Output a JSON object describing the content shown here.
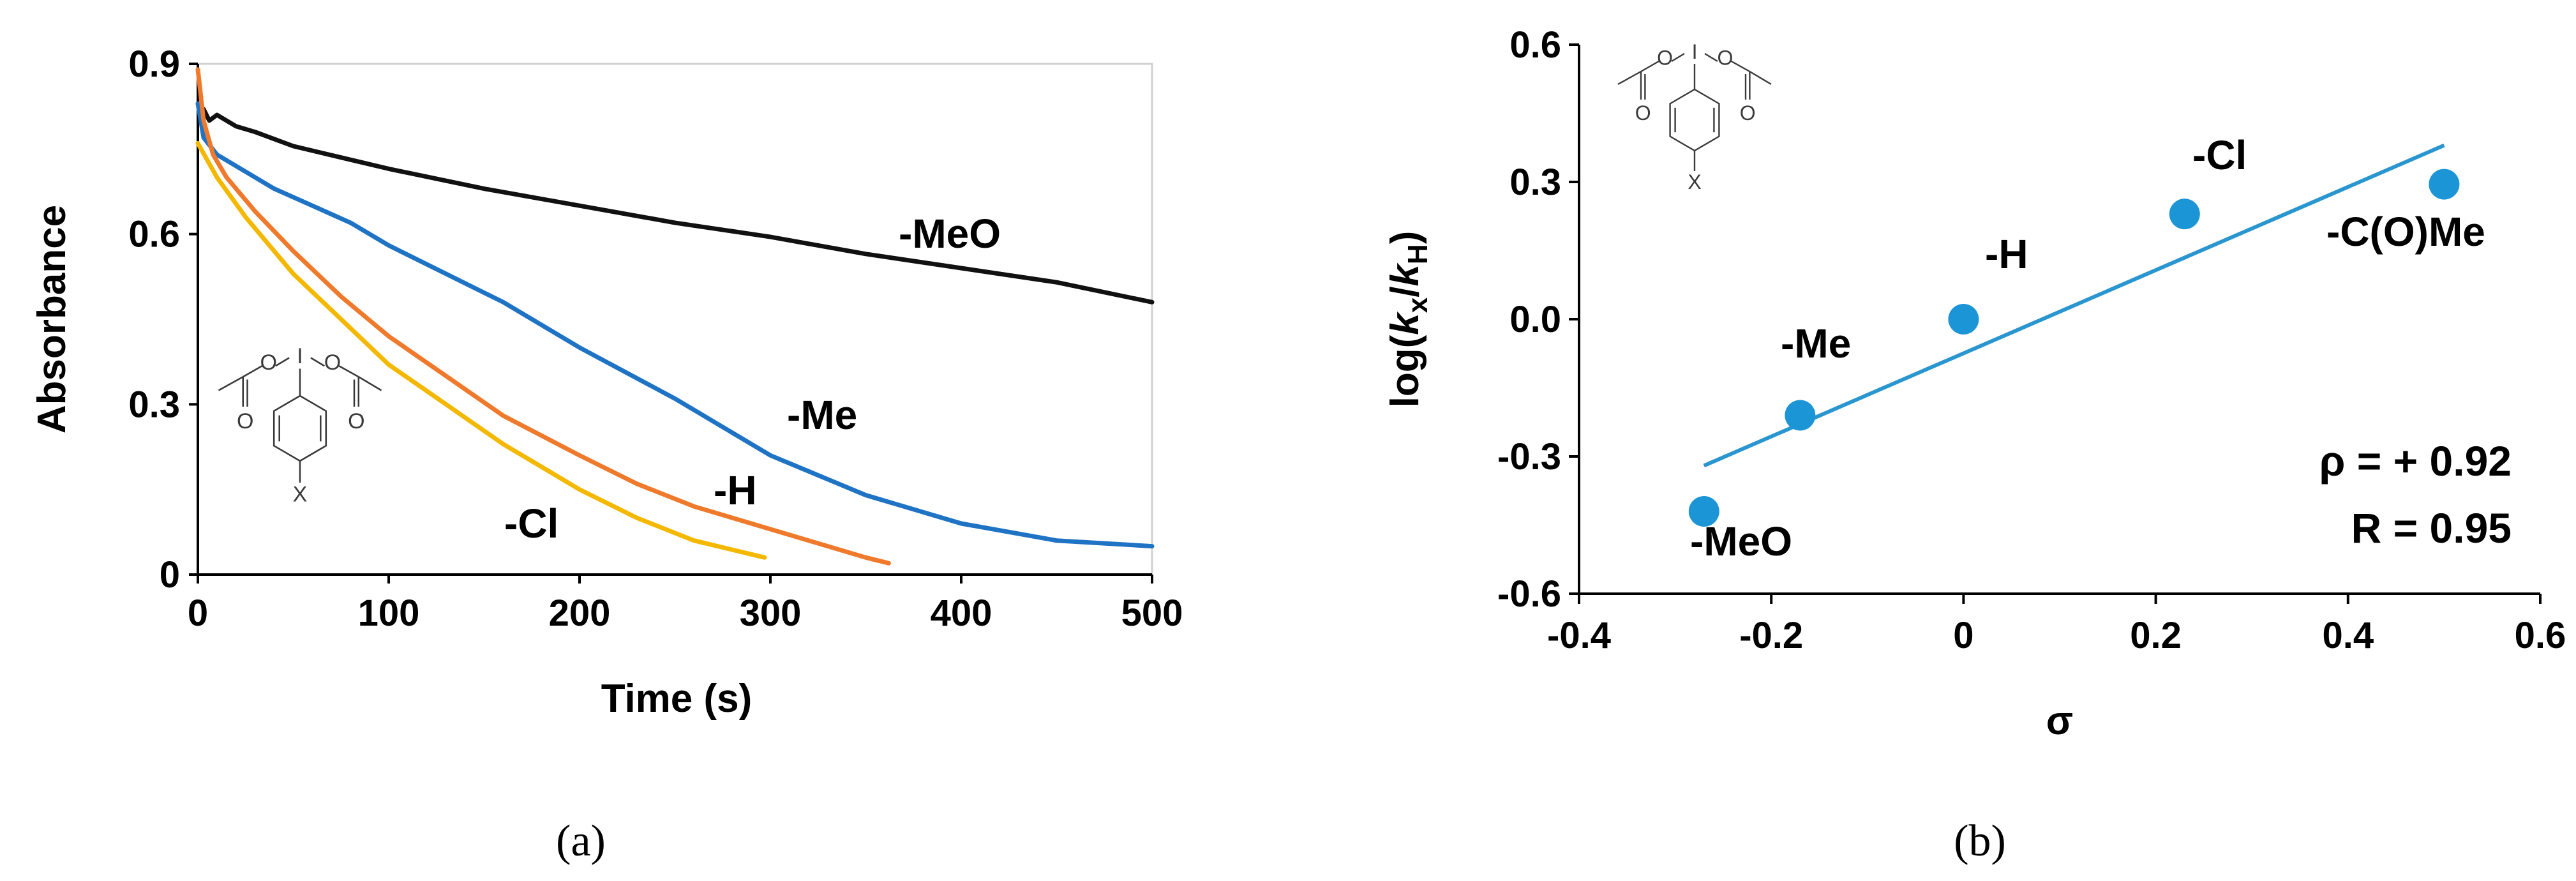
{
  "chart_data": [
    {
      "type": "line",
      "panel": "(a)",
      "xlabel": "Time (s)",
      "ylabel": "Absorbance",
      "xlim": [
        0,
        500
      ],
      "ylim": [
        0,
        0.9
      ],
      "xticks": [
        0,
        100,
        200,
        300,
        400,
        500
      ],
      "yticks": [
        0,
        0.3,
        0.6,
        0.9
      ],
      "xtick_labels": [
        "0",
        "100",
        "200",
        "300",
        "400",
        "500"
      ],
      "ytick_labels": [
        "0",
        "0.3",
        "0.6",
        "0.9"
      ],
      "series": [
        {
          "name": "-MeO",
          "color": "#111111",
          "x": [
            0,
            3,
            6,
            10,
            20,
            30,
            50,
            75,
            100,
            150,
            200,
            250,
            300,
            350,
            400,
            450,
            500
          ],
          "y": [
            0.83,
            0.82,
            0.8,
            0.81,
            0.79,
            0.78,
            0.755,
            0.735,
            0.715,
            0.68,
            0.65,
            0.62,
            0.595,
            0.565,
            0.54,
            0.515,
            0.48
          ]
        },
        {
          "name": "-Me",
          "color": "#1f73c4",
          "x": [
            0,
            3,
            10,
            20,
            40,
            60,
            80,
            100,
            130,
            160,
            200,
            250,
            300,
            350,
            400,
            450,
            500
          ],
          "y": [
            0.83,
            0.77,
            0.74,
            0.72,
            0.68,
            0.65,
            0.62,
            0.58,
            0.53,
            0.48,
            0.4,
            0.31,
            0.21,
            0.14,
            0.09,
            0.06,
            0.05
          ]
        },
        {
          "name": "-H",
          "color": "#f07a2c",
          "x": [
            0,
            3,
            8,
            15,
            30,
            50,
            75,
            100,
            130,
            160,
            200,
            230,
            260,
            290,
            320,
            350,
            362
          ],
          "y": [
            0.89,
            0.8,
            0.74,
            0.7,
            0.64,
            0.57,
            0.49,
            0.42,
            0.35,
            0.28,
            0.21,
            0.16,
            0.12,
            0.09,
            0.06,
            0.03,
            0.02
          ]
        },
        {
          "name": "-Cl",
          "color": "#f5b800",
          "x": [
            0,
            10,
            25,
            50,
            75,
            100,
            130,
            160,
            200,
            230,
            260,
            297
          ],
          "y": [
            0.76,
            0.7,
            0.63,
            0.53,
            0.45,
            0.37,
            0.3,
            0.23,
            0.15,
            0.1,
            0.06,
            0.03
          ]
        }
      ],
      "annotations": [
        "-MeO",
        "-Me",
        "-H",
        "-Cl"
      ],
      "structure_substituent": "X",
      "structure_iodine": "I",
      "structure_oxygen": "O"
    },
    {
      "type": "scatter",
      "panel": "(b)",
      "xlabel": "σ",
      "ylabel_prefix": "log(",
      "ylabel_k": "k",
      "ylabel_sub_x": "x",
      "ylabel_slash": "/",
      "ylabel_sub_h": "H",
      "ylabel_suffix": ")",
      "xlim": [
        -0.4,
        0.6
      ],
      "ylim": [
        -0.6,
        0.6
      ],
      "xticks": [
        -0.4,
        -0.2,
        0,
        0.2,
        0.4,
        0.6
      ],
      "yticks": [
        -0.6,
        -0.3,
        0,
        0.3,
        0.6
      ],
      "xtick_labels": [
        "-0.4",
        "-0.2",
        "0",
        "0.2",
        "0.4",
        "0.6"
      ],
      "ytick_labels": [
        "-0.6",
        "-0.3",
        "0.0",
        "0.3",
        "0.6"
      ],
      "points": [
        {
          "label": "-MeO",
          "x": -0.27,
          "y": -0.42
        },
        {
          "label": "-Me",
          "x": -0.17,
          "y": -0.21
        },
        {
          "label": "-H",
          "x": 0.0,
          "y": 0.0
        },
        {
          "label": "-Cl",
          "x": 0.23,
          "y": 0.23
        },
        {
          "label": "-C(O)Me",
          "x": 0.5,
          "y": 0.295
        }
      ],
      "fit_line": {
        "x": [
          -0.27,
          0.5
        ],
        "y": [
          -0.32,
          0.38
        ]
      },
      "marker_color": "#1c95d6",
      "line_color": "#2a96cf",
      "rho": "ρ = + 0.92",
      "R": "R = 0.95",
      "structure_substituent": "X",
      "structure_iodine": "I",
      "structure_oxygen": "O"
    }
  ],
  "captions": {
    "a": "(a)",
    "b": "(b)"
  }
}
